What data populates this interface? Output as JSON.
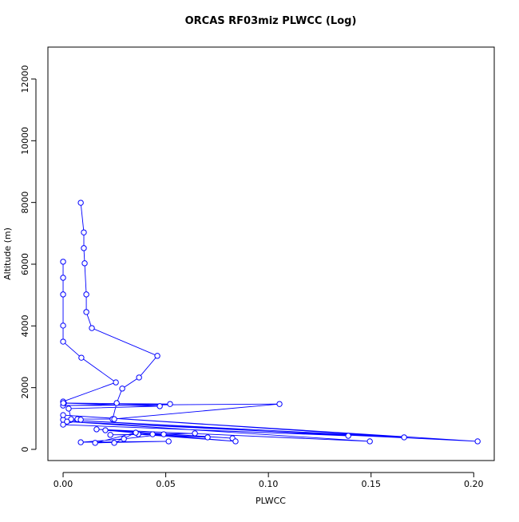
{
  "chart_data": {
    "type": "line",
    "title": "ORCAS RF03miz PLWCC (Log)",
    "x_label": "PLWCC",
    "y_label": "Altitude (m)",
    "series": [
      {
        "color": "#0000ff",
        "x": [
          0.0086,
          0.0101,
          0.0101,
          0.0105,
          0.0113,
          0.0113,
          0.014,
          0.0459,
          0.037,
          0.0288,
          0.0261,
          0.0241,
          0.1054,
          0.0,
          0.0521,
          0.0004,
          0.0471,
          0.0027,
          0.0039,
          0.0249,
          0.007,
          0.0086,
          0.0,
          0.1389,
          0.0,
          0.1661,
          0.0,
          0.2019,
          0.0019,
          0.1494,
          0.0163,
          0.0825,
          0.0206,
          0.084,
          0.0366,
          0.0704,
          0.0436,
          0.0642,
          0.023,
          0.049,
          0.0296,
          0.0086,
          0.0514,
          0.0156,
          0.0354,
          0.0249,
          null,
          0.0,
          0.0,
          0.0,
          0.0,
          0.0,
          0.0089,
          0.0257,
          0.0,
          0.0001
        ],
        "values": [
          7990,
          7030,
          6520,
          6030,
          5020,
          4450,
          3930,
          3030,
          2330,
          1970,
          1500,
          980,
          1470,
          1420,
          1470,
          1500,
          1400,
          1320,
          980,
          980,
          980,
          960,
          800,
          440,
          960,
          390,
          1110,
          260,
          900,
          260,
          650,
          360,
          620,
          260,
          490,
          390,
          490,
          520,
          470,
          490,
          340,
          230,
          260,
          210,
          540,
          210,
          null,
          6080,
          5560,
          5020,
          4010,
          3490,
          2970,
          2170,
          1550,
          1500
        ]
      }
    ],
    "xlim": [
      -0.0074,
      0.21
    ],
    "ylim": [
      -362,
      13034
    ],
    "xticks": [
      {
        "value": 0,
        "label": "0.00"
      },
      {
        "value": 0.05,
        "label": "0.05"
      },
      {
        "value": 0.1,
        "label": "0.10"
      },
      {
        "value": 0.15,
        "label": "0.15"
      },
      {
        "value": 0.2,
        "label": "0.20"
      }
    ],
    "yticks": [
      0,
      2000,
      4000,
      6000,
      8000,
      10000,
      12000
    ]
  }
}
